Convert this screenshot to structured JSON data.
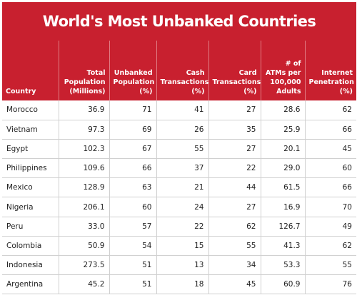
{
  "chart_data": {
    "type": "table",
    "title": "World's Most Unbanked Countries",
    "columns": [
      "Country",
      "Total Population (Millions)",
      "Unbanked Population (%)",
      "Cash Transactions (%)",
      "Card Transactions (%)",
      "# of ATMs per 100,000 Adults",
      "Internet Penetration (%)"
    ],
    "rows": [
      [
        "Morocco",
        "36.9",
        "71",
        "41",
        "27",
        "28.6",
        "62"
      ],
      [
        "Vietnam",
        "97.3",
        "69",
        "26",
        "35",
        "25.9",
        "66"
      ],
      [
        "Egypt",
        "102.3",
        "67",
        "55",
        "27",
        "20.1",
        "45"
      ],
      [
        "Philippines",
        "109.6",
        "66",
        "37",
        "22",
        "29.0",
        "60"
      ],
      [
        "Mexico",
        "128.9",
        "63",
        "21",
        "44",
        "61.5",
        "66"
      ],
      [
        "Nigeria",
        "206.1",
        "60",
        "24",
        "27",
        "16.9",
        "70"
      ],
      [
        "Peru",
        "33.0",
        "57",
        "22",
        "62",
        "126.7",
        "49"
      ],
      [
        "Colombia",
        "50.9",
        "54",
        "15",
        "55",
        "41.3",
        "62"
      ],
      [
        "Indonesia",
        "273.5",
        "51",
        "13",
        "34",
        "53.3",
        "55"
      ],
      [
        "Argentina",
        "45.2",
        "51",
        "18",
        "45",
        "60.9",
        "76"
      ]
    ]
  },
  "colors": {
    "header_background": "#c8202f",
    "header_text": "#ffffff",
    "body_text": "#222222",
    "grid": "#d0d0d0"
  }
}
